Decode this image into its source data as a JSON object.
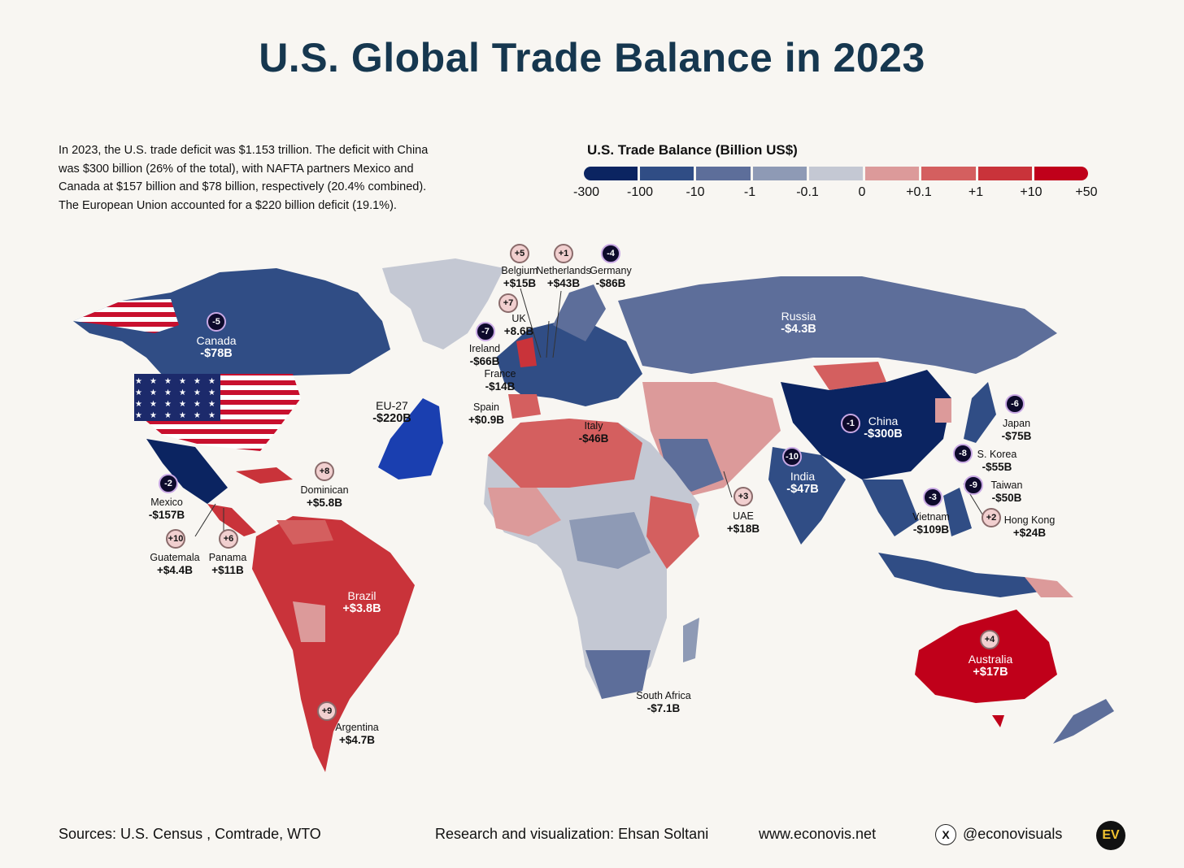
{
  "title": "U.S. Global Trade Balance in 2023",
  "intro": "In 2023, the U.S. trade deficit was $1.153 trillion. The deficit with China was $300 billion (26% of the total), with NAFTA partners Mexico and Canada at $157 billion and $78 billion, respectively (20.4% combined). The European Union accounted for a $220 billion deficit (19.1%).",
  "legend": {
    "title": "U.S. Trade Balance (Billion US$)",
    "colors": [
      "#0b2461",
      "#304d85",
      "#5d6e9a",
      "#8e9ab5",
      "#c4c8d3",
      "#dc9a9a",
      "#d45f5f",
      "#c9333a",
      "#c0001a"
    ],
    "ticks": [
      "-300",
      "-100",
      "-10",
      "-1",
      "-0.1",
      "0",
      "+0.1",
      "+1",
      "+10",
      "+50"
    ]
  },
  "colors": {
    "deep_blue": "#0b2461",
    "blue": "#304d85",
    "mid_blue": "#5d6e9a",
    "light_blue": "#8e9ab5",
    "grey": "#c4c8d3",
    "pink": "#dc9a9a",
    "light_red": "#d45f5f",
    "red": "#c9333a",
    "deep_red": "#c0001a",
    "eu_blue": "#1a3fb0",
    "title": "#16374f"
  },
  "countries": [
    {
      "id": "canada",
      "name": "Canada",
      "value": "-$78B",
      "rank": "-5"
    },
    {
      "id": "mexico",
      "name": "Mexico",
      "value": "-$157B",
      "rank": "-2"
    },
    {
      "id": "guatemala",
      "name": "Guatemala",
      "value": "+$4.4B",
      "rank": "+10"
    },
    {
      "id": "panama",
      "name": "Panama",
      "value": "+$11B",
      "rank": "+6"
    },
    {
      "id": "dominican",
      "name": "Dominican",
      "value": "+$5.8B",
      "rank": "+8"
    },
    {
      "id": "brazil",
      "name": "Brazil",
      "value": "+$3.8B"
    },
    {
      "id": "argentina",
      "name": "Argentina",
      "value": "+$4.7B",
      "rank": "+9"
    },
    {
      "id": "eu27",
      "name": "EU-27",
      "value": "-$220B"
    },
    {
      "id": "ireland",
      "name": "Ireland",
      "value": "-$66B",
      "rank": "-7"
    },
    {
      "id": "uk",
      "name": "UK",
      "value": "+8.6B",
      "rank": "+7"
    },
    {
      "id": "france",
      "name": "France",
      "value": "-$14B"
    },
    {
      "id": "spain",
      "name": "Spain",
      "value": "+$0.9B"
    },
    {
      "id": "italy",
      "name": "Italy",
      "value": "-$46B"
    },
    {
      "id": "belgium",
      "name": "Belgium",
      "value": "+$15B",
      "rank": "+5"
    },
    {
      "id": "netherlands",
      "name": "Netherlands",
      "value": "+$43B",
      "rank": "+1"
    },
    {
      "id": "germany",
      "name": "Germany",
      "value": "-$86B",
      "rank": "-4"
    },
    {
      "id": "russia",
      "name": "Russia",
      "value": "-$4.3B"
    },
    {
      "id": "china",
      "name": "China",
      "value": "-$300B",
      "rank": "-1"
    },
    {
      "id": "japan",
      "name": "Japan",
      "value": "-$75B",
      "rank": "-6"
    },
    {
      "id": "skorea",
      "name": "S. Korea",
      "value": "-$55B",
      "rank": "-8"
    },
    {
      "id": "taiwan",
      "name": "Taiwan",
      "value": "-$50B",
      "rank": "-9"
    },
    {
      "id": "hongkong",
      "name": "Hong Kong",
      "value": "+$24B",
      "rank": "+2"
    },
    {
      "id": "vietnam",
      "name": "Vietnam",
      "value": "-$109B",
      "rank": "-3"
    },
    {
      "id": "india",
      "name": "India",
      "value": "-$47B",
      "rank": "-10"
    },
    {
      "id": "uae",
      "name": "UAE",
      "value": "+$18B",
      "rank": "+3"
    },
    {
      "id": "southafrica",
      "name": "South Africa",
      "value": "-$7.1B"
    },
    {
      "id": "australia",
      "name": "Australia",
      "value": "+$17B",
      "rank": "+4"
    }
  ],
  "footer": {
    "sources": "Sources: U.S. Census , Comtrade, WTO",
    "credit": "Research and visualization: Ehsan Soltani",
    "website": "www.econovis.net",
    "handle": "@econovisuals",
    "x_icon": "X",
    "logo": "EV"
  }
}
